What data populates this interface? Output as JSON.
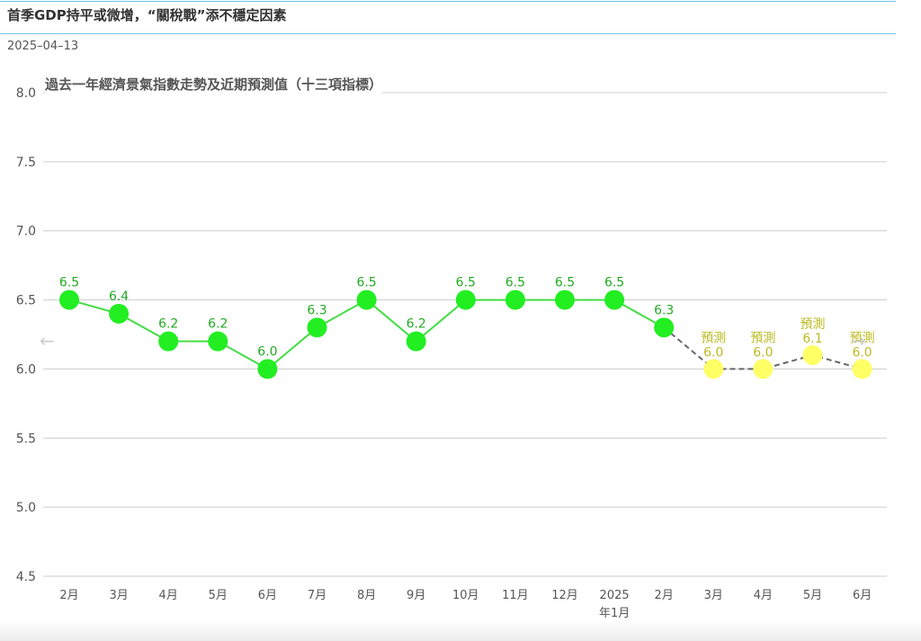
{
  "article": {
    "headline": "首季GDP持平或微增，“關稅戰”添不穩定因素",
    "date": "2025–04–13"
  },
  "nav": {
    "prev_icon": "←",
    "next_icon": "→"
  },
  "colors": {
    "actual_line": "#44dd44",
    "actual_point": "#22ee22",
    "actual_label": "#22aa22",
    "forecast_line": "#666666",
    "forecast_point": "#ffff66",
    "forecast_label": "#bbbb22",
    "grid": "#cccccc",
    "axis_text": "#555555"
  },
  "chart_data": {
    "type": "line",
    "title": "過去一年經濟景氣指數走勢及近期預測值（十三項指標）",
    "xlabel": "",
    "ylabel": "",
    "ylim": [
      4.5,
      8.0
    ],
    "yticks": [
      "8.0",
      "7.5",
      "7.0",
      "6.5",
      "6.0",
      "5.5",
      "5.0",
      "4.5"
    ],
    "grid": true,
    "categories": [
      "2月",
      "3月",
      "4月",
      "5月",
      "6月",
      "7月",
      "8月",
      "9月",
      "10月",
      "11月",
      "12月",
      "2025年1月",
      "2月",
      "3月",
      "4月",
      "5月",
      "6月"
    ],
    "category_lines": [
      [
        "2月"
      ],
      [
        "3月"
      ],
      [
        "4月"
      ],
      [
        "5月"
      ],
      [
        "6月"
      ],
      [
        "7月"
      ],
      [
        "8月"
      ],
      [
        "9月"
      ],
      [
        "10月"
      ],
      [
        "11月"
      ],
      [
        "12月"
      ],
      [
        "2025",
        "年1月"
      ],
      [
        "2月"
      ],
      [
        "3月"
      ],
      [
        "4月"
      ],
      [
        "5月"
      ],
      [
        "6月"
      ]
    ],
    "series": [
      {
        "values": [
          6.5,
          6.4,
          6.2,
          6.2,
          6.0,
          6.3,
          6.5,
          6.2,
          6.5,
          6.5,
          6.5,
          6.5,
          6.3,
          null,
          null,
          null,
          null
        ]
      },
      {
        "values": [
          null,
          null,
          null,
          null,
          null,
          null,
          null,
          null,
          null,
          null,
          null,
          null,
          6.3,
          6.0,
          6.0,
          6.1,
          6.0
        ],
        "point_label": "預測"
      }
    ],
    "data_labels": [
      "6.5",
      "6.4",
      "6.2",
      "6.2",
      "6.0",
      "6.3",
      "6.5",
      "6.2",
      "6.5",
      "6.5",
      "6.5",
      "6.5",
      "6.3",
      "6.0",
      "6.0",
      "6.1",
      "6.0"
    ]
  }
}
